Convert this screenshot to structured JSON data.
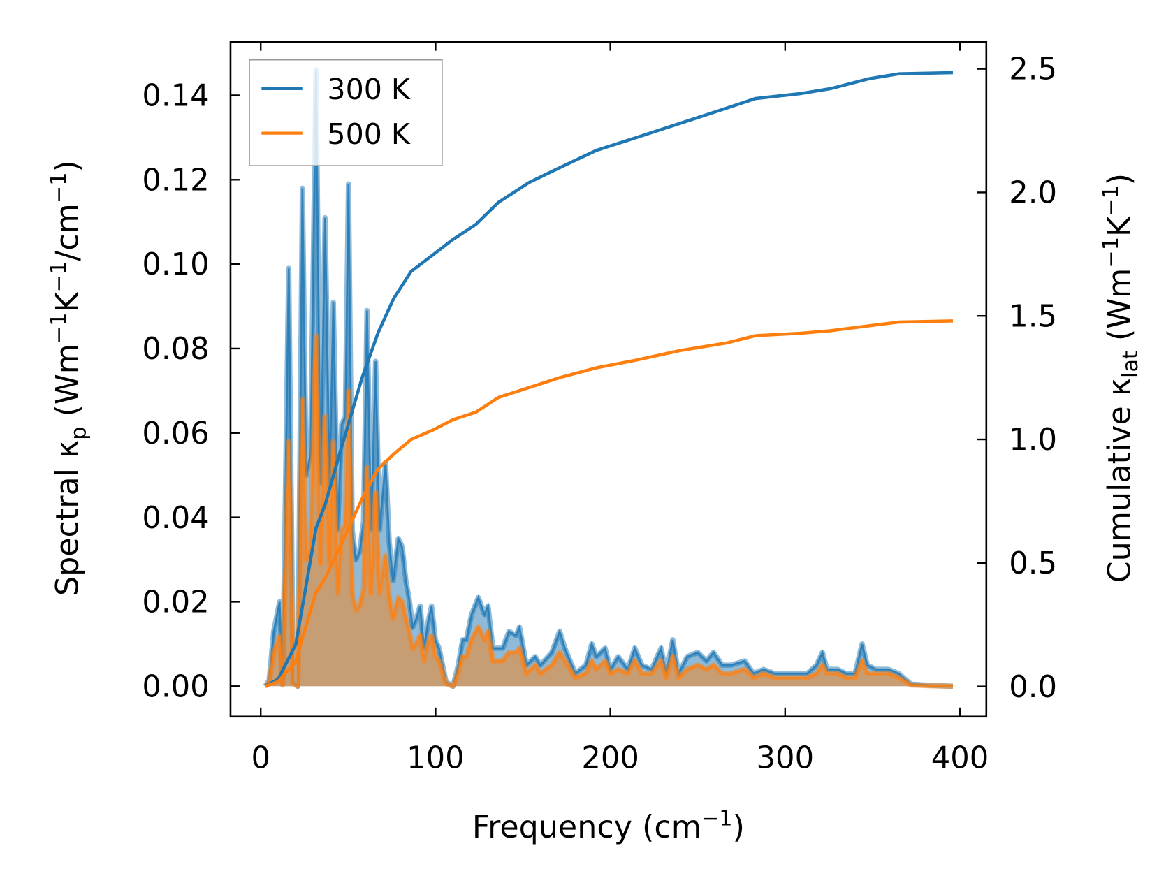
{
  "chart_data": {
    "type": "line",
    "title": "",
    "xlabel": {
      "main": "Frequency (cm",
      "sup": "−1",
      "end": ")"
    },
    "ylabel_left": [
      {
        "t": "Spectral κ"
      },
      {
        "t": "p",
        "sub": true
      },
      {
        "t": " (Wm"
      },
      {
        "t": "−1",
        "sup": true
      },
      {
        "t": "K"
      },
      {
        "t": "−1",
        "sup": true
      },
      {
        "t": "/cm"
      },
      {
        "t": "−1",
        "sup": true
      },
      {
        "t": ")"
      }
    ],
    "ylabel_right": [
      {
        "t": "Cumulative κ"
      },
      {
        "t": "lat",
        "sub": true
      },
      {
        "t": " (Wm"
      },
      {
        "t": "−1",
        "sup": true
      },
      {
        "t": "K"
      },
      {
        "t": "−1",
        "sup": true
      },
      {
        "t": ")"
      }
    ],
    "xlim": [
      -17.3,
      415.1
    ],
    "ylim_left": [
      -0.0072,
      0.1527
    ],
    "ylim_right": [
      -0.122,
      2.61
    ],
    "xticks": [
      "0",
      "100",
      "200",
      "300",
      "400"
    ],
    "xtick_values": [
      0,
      100,
      200,
      300,
      400
    ],
    "yticks_left": [
      "0.00",
      "0.02",
      "0.04",
      "0.06",
      "0.08",
      "0.10",
      "0.12",
      "0.14"
    ],
    "ytick_left_values": [
      0,
      0.02,
      0.04,
      0.06,
      0.08,
      0.1,
      0.12,
      0.14
    ],
    "yticks_right": [
      "0.0",
      "0.5",
      "1.0",
      "1.5",
      "2.0",
      "2.5"
    ],
    "ytick_right_values": [
      0,
      0.5,
      1.0,
      1.5,
      2.0,
      2.5
    ],
    "grid": false,
    "legend": {
      "placement": "top-left",
      "entries": [
        "300 K",
        "500 K"
      ]
    },
    "colors": {
      "300 K": "#1f77b4",
      "500 K": "#ff7f0e"
    },
    "spectral": {
      "x": [
        2.6,
        4.8,
        7.4,
        10.8,
        12.5,
        16,
        18.6,
        21.2,
        23.8,
        26,
        28.5,
        31.6,
        34.2,
        36.8,
        39.4,
        41.5,
        44,
        46.3,
        48.4,
        50.2,
        52.3,
        54.5,
        56.6,
        58.8,
        60.8,
        63.1,
        65.7,
        67.9,
        71.4,
        73.5,
        75.7,
        78.7,
        80.9,
        83,
        84.8,
        86.9,
        89,
        91.2,
        93.4,
        95.6,
        97.7,
        99.9,
        102,
        106,
        110,
        113,
        115.5,
        117.6,
        120.6,
        124.5,
        128,
        130,
        132.8,
        136.2,
        138.4,
        142,
        146,
        148,
        152,
        157,
        160,
        166.5,
        171,
        174,
        180,
        186,
        189.4,
        192,
        197,
        200,
        204.5,
        210,
        214,
        218,
        223.6,
        229,
        232,
        235.7,
        239,
        244,
        250,
        255,
        259,
        264,
        269,
        276.8,
        282,
        287.6,
        294,
        300.5,
        307,
        312.6,
        318,
        321.3,
        324,
        330,
        335,
        340,
        344,
        347,
        352,
        359,
        365,
        372,
        383,
        396
      ],
      "series": [
        {
          "name": "300 K",
          "values": [
            0,
            0.0014,
            0.013,
            0.02,
            0.0005,
            0.099,
            0.001,
            0,
            0.118,
            0.05,
            0.055,
            0.146,
            0.048,
            0.111,
            0.048,
            0.091,
            0.037,
            0.062,
            0.064,
            0.119,
            0.037,
            0.03,
            0.032,
            0.039,
            0.089,
            0.037,
            0.077,
            0.037,
            0.053,
            0.034,
            0.025,
            0.035,
            0.033,
            0.025,
            0.021,
            0.014,
            0.016,
            0.019,
            0.009,
            0.015,
            0.019,
            0.011,
            0.009,
            0.001,
            0,
            0.005,
            0.011,
            0.011,
            0.017,
            0.021,
            0.017,
            0.019,
            0.009,
            0.009,
            0.009,
            0.013,
            0.012,
            0.014,
            0.005,
            0.007,
            0.005,
            0.008,
            0.013,
            0.009,
            0.003,
            0.005,
            0.01,
            0.007,
            0.009,
            0.004,
            0.007,
            0.004,
            0.009,
            0.005,
            0.004,
            0.009,
            0.003,
            0.011,
            0.003,
            0.007,
            0.008,
            0.006,
            0.008,
            0.005,
            0.005,
            0.006,
            0.003,
            0.004,
            0.003,
            0.003,
            0.003,
            0.003,
            0.005,
            0.008,
            0.004,
            0.004,
            0.003,
            0.003,
            0.01,
            0.005,
            0.004,
            0.004,
            0.003,
            0.0005,
            0.0002,
            0
          ]
        },
        {
          "name": "500 K",
          "values": [
            0,
            0.0008,
            0.008,
            0.012,
            0.0003,
            0.058,
            0.0006,
            0,
            0.068,
            0.03,
            0.033,
            0.083,
            0.029,
            0.064,
            0.029,
            0.058,
            0.022,
            0.037,
            0.038,
            0.07,
            0.022,
            0.018,
            0.019,
            0.023,
            0.052,
            0.022,
            0.046,
            0.022,
            0.031,
            0.021,
            0.016,
            0.021,
            0.02,
            0.016,
            0.013,
            0.009,
            0.01,
            0.012,
            0.006,
            0.01,
            0.012,
            0.007,
            0.006,
            0.0006,
            0,
            0.003,
            0.007,
            0.007,
            0.011,
            0.014,
            0.011,
            0.013,
            0.006,
            0.006,
            0.006,
            0.008,
            0.008,
            0.009,
            0.003,
            0.005,
            0.003,
            0.005,
            0.008,
            0.006,
            0.002,
            0.003,
            0.006,
            0.004,
            0.006,
            0.003,
            0.004,
            0.003,
            0.006,
            0.003,
            0.003,
            0.006,
            0.002,
            0.007,
            0.002,
            0.004,
            0.005,
            0.004,
            0.005,
            0.003,
            0.003,
            0.004,
            0.002,
            0.003,
            0.002,
            0.002,
            0.002,
            0.002,
            0.003,
            0.005,
            0.003,
            0.003,
            0.002,
            0.002,
            0.006,
            0.003,
            0.003,
            0.003,
            0.002,
            0.0003,
            0.0001,
            0
          ]
        }
      ]
    },
    "cumulative": {
      "x": [
        2.6,
        10,
        20,
        24,
        31.6,
        37,
        45,
        58,
        67,
        76,
        86,
        99,
        110,
        123,
        136,
        153.5,
        171,
        192,
        214,
        240,
        266,
        283,
        309,
        326,
        348,
        365,
        396
      ],
      "series": [
        {
          "name": "300 K",
          "values": [
            0,
            0.03,
            0.17,
            0.33,
            0.64,
            0.74,
            0.94,
            1.25,
            1.43,
            1.57,
            1.68,
            1.75,
            1.81,
            1.87,
            1.96,
            2.04,
            2.1,
            2.17,
            2.22,
            2.28,
            2.34,
            2.38,
            2.4,
            2.42,
            2.46,
            2.48,
            2.485
          ]
        },
        {
          "name": "500 K",
          "values": [
            0,
            0.02,
            0.1,
            0.2,
            0.38,
            0.44,
            0.56,
            0.76,
            0.88,
            0.94,
            1.0,
            1.04,
            1.08,
            1.11,
            1.17,
            1.21,
            1.25,
            1.29,
            1.32,
            1.36,
            1.39,
            1.42,
            1.43,
            1.44,
            1.46,
            1.475,
            1.48
          ]
        }
      ]
    }
  }
}
